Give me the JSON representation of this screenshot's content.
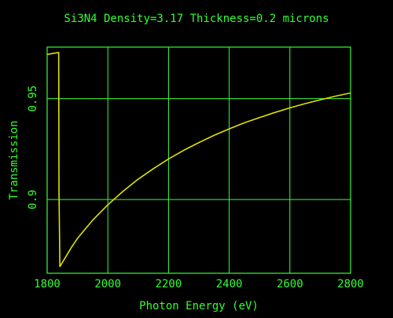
{
  "chart_data": {
    "type": "line",
    "title": "Si3N4 Density=3.17 Thickness=0.2 microns",
    "xlabel": "Photon Energy (eV)",
    "ylabel": "Transmission",
    "xlim": [
      1800,
      2800
    ],
    "ylim": [
      0.8635,
      0.9755
    ],
    "x_ticks": [
      1800,
      2000,
      2200,
      2400,
      2600,
      2800
    ],
    "x_tick_labels": [
      "1800",
      "2000",
      "2200",
      "2400",
      "2600",
      "2800"
    ],
    "y_ticks": [
      0.9,
      0.95
    ],
    "y_tick_labels": [
      "0.9",
      "0.95"
    ],
    "grid": true,
    "colors": {
      "background": "#000000",
      "axes": "#33ff33",
      "text": "#33ff33",
      "line": "#e0e000"
    },
    "series": [
      {
        "x": [
          1800,
          1820,
          1838,
          1839,
          1842,
          1860,
          1880,
          1900,
          1950,
          2000,
          2050,
          2100,
          2150,
          2200,
          2250,
          2300,
          2350,
          2400,
          2450,
          2500,
          2550,
          2600,
          2650,
          2700,
          2750,
          2800
        ],
        "y": [
          0.9718,
          0.9724,
          0.9728,
          0.904,
          0.8668,
          0.8713,
          0.8763,
          0.8808,
          0.8898,
          0.8974,
          0.9041,
          0.9101,
          0.9153,
          0.9201,
          0.9244,
          0.9282,
          0.9318,
          0.935,
          0.938,
          0.9406,
          0.9431,
          0.9454,
          0.9475,
          0.9494,
          0.9512,
          0.9528
        ]
      }
    ]
  }
}
